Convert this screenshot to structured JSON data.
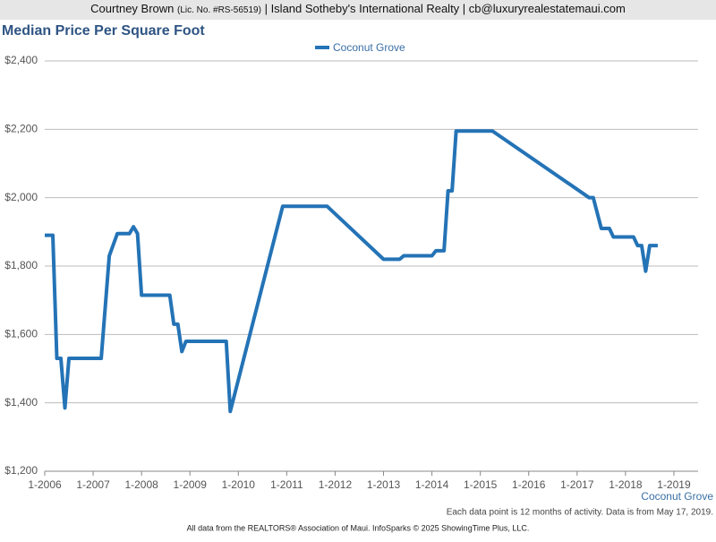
{
  "header": {
    "name": "Courtney Brown",
    "license": "(Lic. No. #RS-56519)",
    "rest": "| Island Sotheby's International Realty | cb@luxuryrealestatemaui.com"
  },
  "chart_data": {
    "type": "line",
    "title": "Median Price Per Square Foot",
    "x_label": "Coconut Grove",
    "x": [
      "2006-01",
      "2006-03",
      "2006-04",
      "2006-05",
      "2006-06",
      "2006-07",
      "2007-03",
      "2007-05",
      "2007-07",
      "2007-10",
      "2007-11",
      "2007-12",
      "2008-01",
      "2008-08",
      "2008-09",
      "2008-10",
      "2008-11",
      "2008-12",
      "2009-10",
      "2009-11",
      "2010-12",
      "2011-11",
      "2013-01",
      "2013-05",
      "2013-06",
      "2014-01",
      "2014-02",
      "2014-04",
      "2014-05",
      "2014-06",
      "2014-07",
      "2015-04",
      "2017-04",
      "2017-05",
      "2017-07",
      "2017-09",
      "2017-10",
      "2018-03",
      "2018-04",
      "2018-05",
      "2018-06",
      "2018-07",
      "2018-09"
    ],
    "series": [
      {
        "name": "Coconut Grove",
        "color": "#2473b6",
        "values": [
          1890,
          1890,
          1530,
          1530,
          1385,
          1530,
          1530,
          1830,
          1895,
          1895,
          1915,
          1895,
          1715,
          1715,
          1630,
          1630,
          1550,
          1580,
          1580,
          1375,
          1975,
          1975,
          1820,
          1820,
          1830,
          1830,
          1845,
          1845,
          2020,
          2020,
          2195,
          2195,
          2000,
          2000,
          1910,
          1910,
          1885,
          1885,
          1860,
          1860,
          1785,
          1860,
          1860
        ]
      }
    ],
    "xlim": [
      "2006-01",
      "2019-07"
    ],
    "xticks": [
      {
        "value": "2006-01",
        "label": "1-2006"
      },
      {
        "value": "2007-01",
        "label": "1-2007"
      },
      {
        "value": "2008-01",
        "label": "1-2008"
      },
      {
        "value": "2009-01",
        "label": "1-2009"
      },
      {
        "value": "2010-01",
        "label": "1-2010"
      },
      {
        "value": "2011-01",
        "label": "1-2011"
      },
      {
        "value": "2012-01",
        "label": "1-2012"
      },
      {
        "value": "2013-01",
        "label": "1-2013"
      },
      {
        "value": "2014-01",
        "label": "1-2014"
      },
      {
        "value": "2015-01",
        "label": "1-2015"
      },
      {
        "value": "2016-01",
        "label": "1-2016"
      },
      {
        "value": "2017-01",
        "label": "1-2017"
      },
      {
        "value": "2018-01",
        "label": "1-2018"
      },
      {
        "value": "2019-01",
        "label": "1-2019"
      }
    ],
    "ylim": [
      1200,
      2400
    ],
    "yticks": [
      {
        "value": 1200,
        "label": "$1,200"
      },
      {
        "value": 1400,
        "label": "$1,400"
      },
      {
        "value": 1600,
        "label": "$1,600"
      },
      {
        "value": 1800,
        "label": "$1,800"
      },
      {
        "value": 2000,
        "label": "$2,000"
      },
      {
        "value": 2200,
        "label": "$2,200"
      },
      {
        "value": 2400,
        "label": "$2,400"
      }
    ],
    "grid": true
  },
  "footer": {
    "note": "Each data point is 12 months of activity. Data is from May 17, 2019.",
    "credit": "All data from the REALTORS® Association of Maui. InfoSparks © 2025 ShowingTime Plus, LLC."
  }
}
